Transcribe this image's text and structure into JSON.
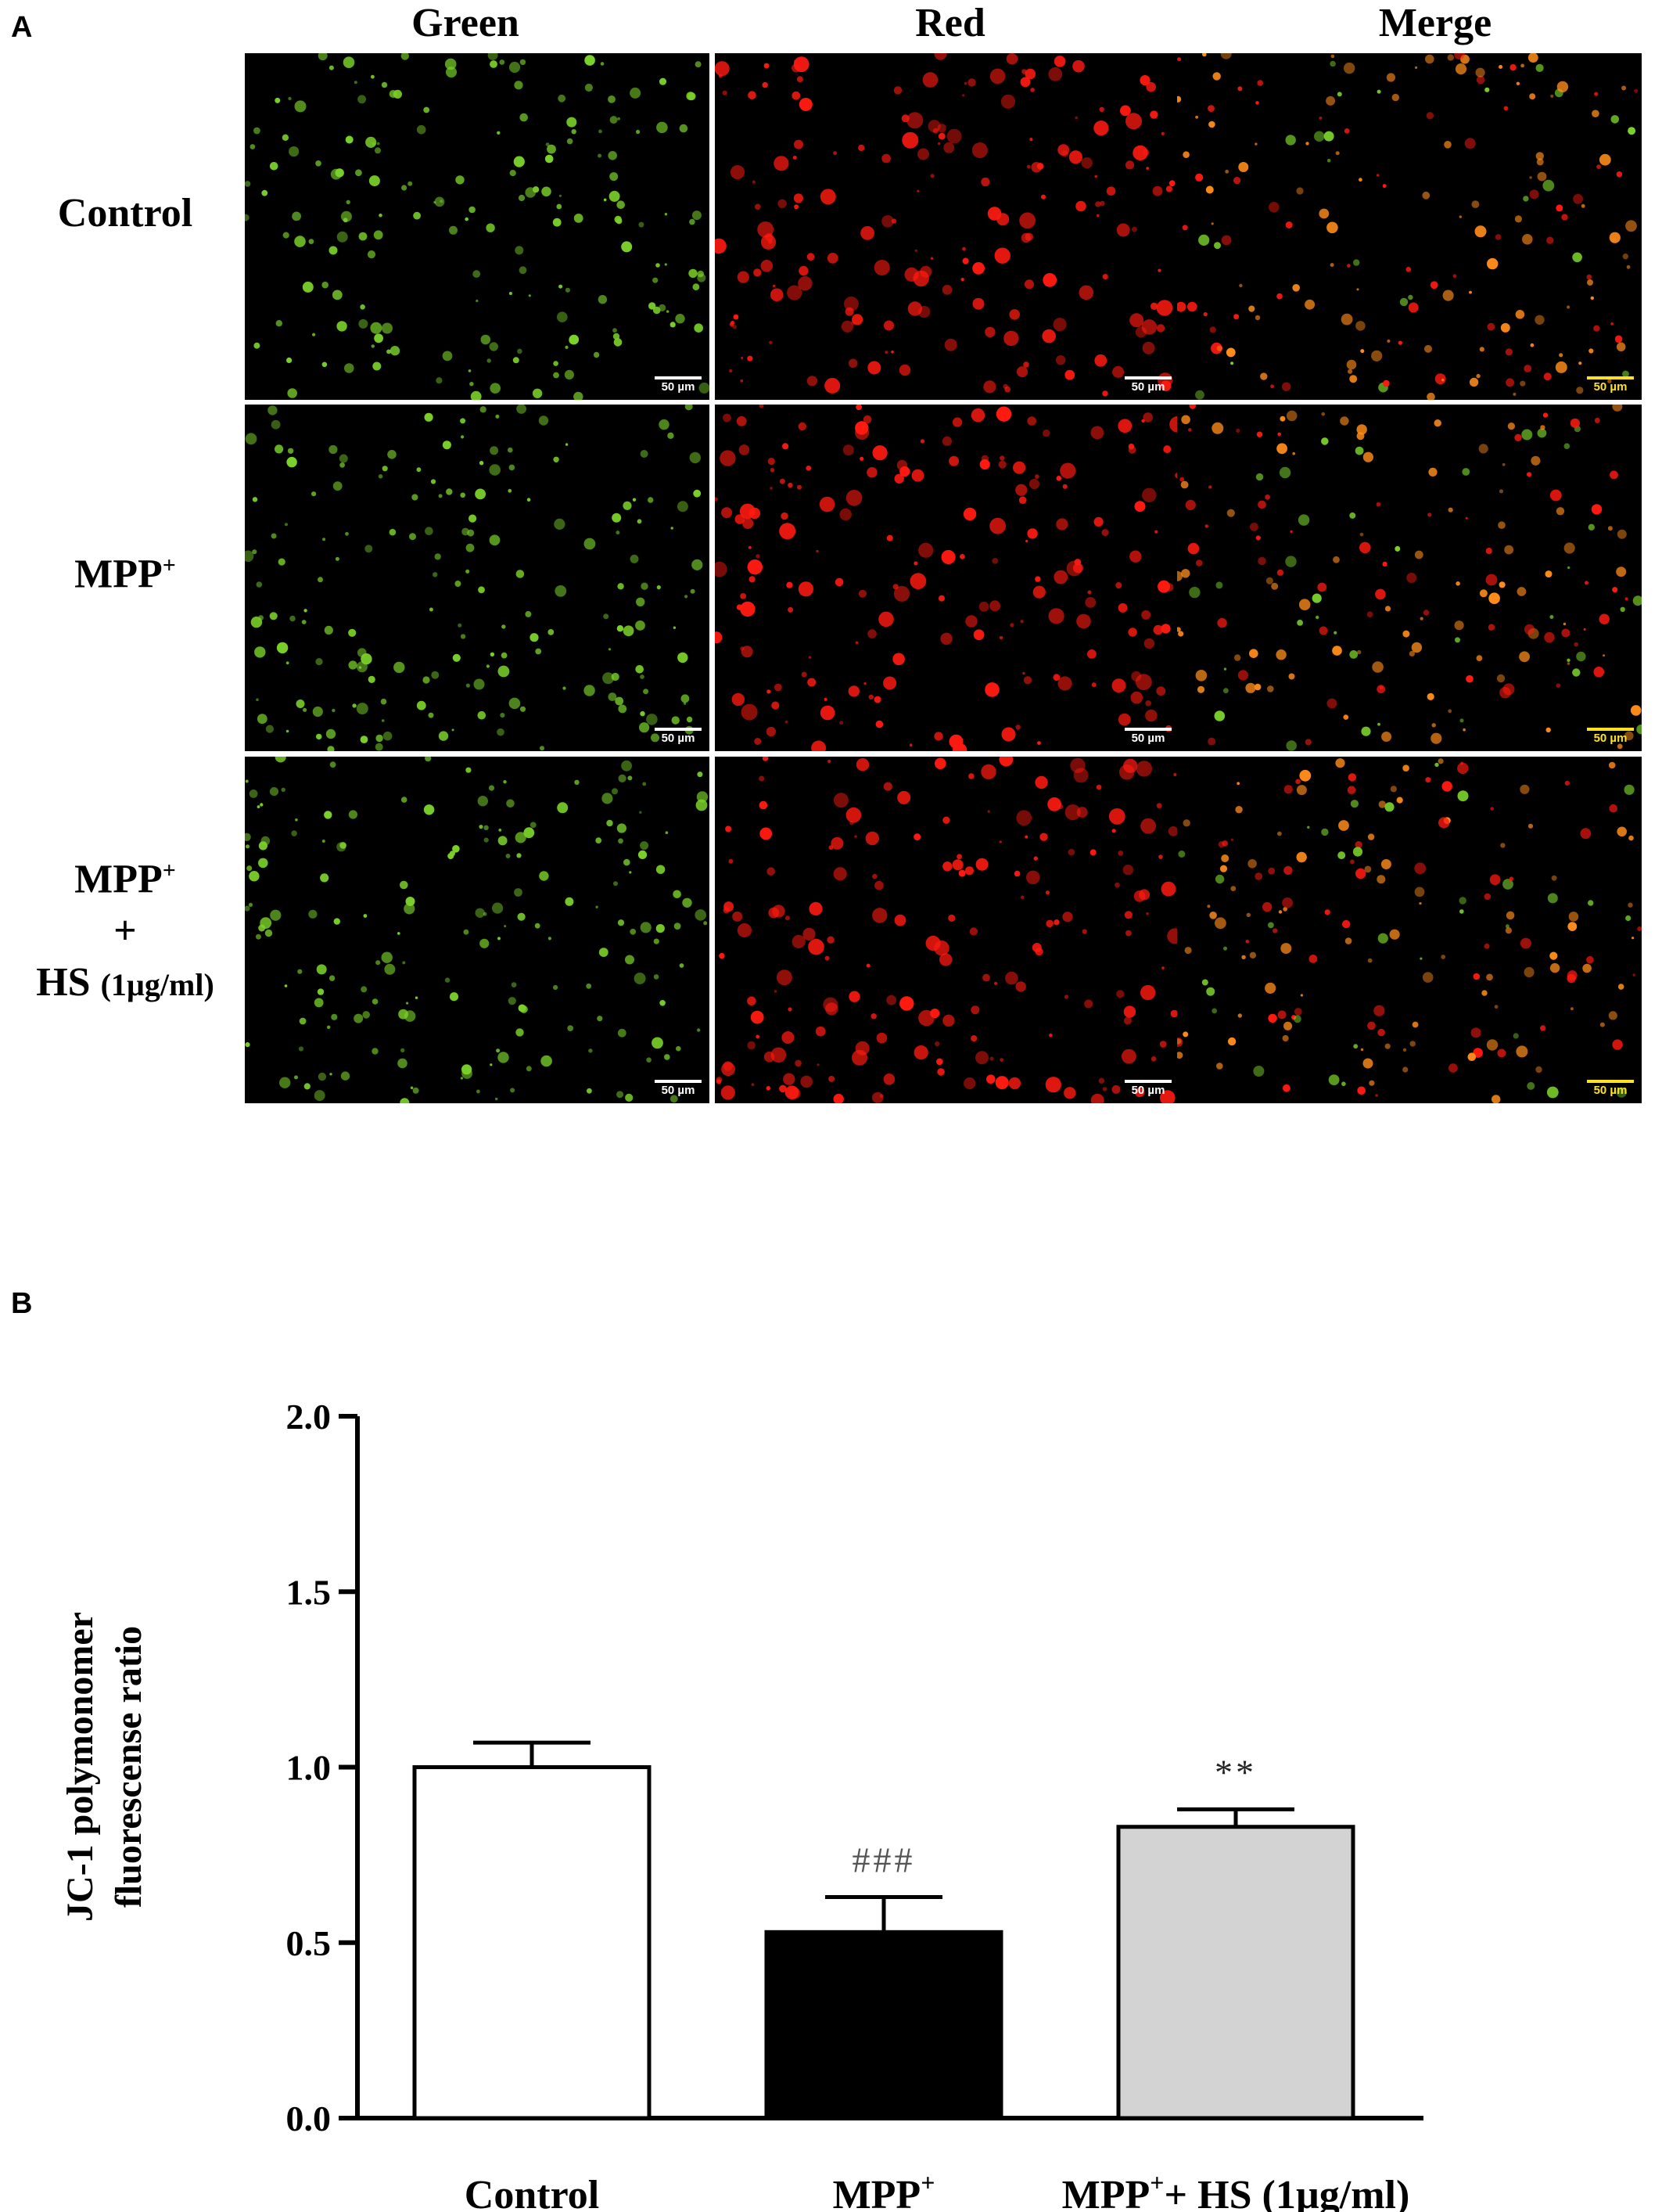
{
  "panel_a": {
    "letter": "A",
    "columns": [
      "Green",
      "Red",
      "Merge"
    ],
    "rows": [
      {
        "line1": "Control",
        "sup1": ""
      },
      {
        "line1": "MPP",
        "sup1": "+"
      },
      {
        "line1": "MPP",
        "sup1": "+",
        "line2": "+",
        "line3": "HS",
        "line3_small": "(1µg/ml)"
      }
    ],
    "scale_bar_label": "50 µm",
    "channel_colors": {
      "green": "#7ad12a",
      "red": "#ff1a10",
      "merge": "#ff8c1a"
    },
    "scale_bar_colors": [
      "#ffffff",
      "#ffffff",
      "#ffe21f"
    ]
  },
  "panel_b": {
    "letter": "B"
  },
  "chart_data": {
    "type": "bar",
    "categories": [
      "Control",
      "MPP+",
      "MPP+ + HS (1µg/ml)"
    ],
    "category_labels": [
      {
        "main": "Control",
        "sup": "",
        "suffix": ""
      },
      {
        "main": "MPP",
        "sup": "+",
        "suffix": ""
      },
      {
        "main": "MPP",
        "sup": "+",
        "suffix": "+ HS (1µg/ml)"
      }
    ],
    "values": [
      1.0,
      0.53,
      0.83
    ],
    "errors": [
      0.07,
      0.1,
      0.05
    ],
    "bar_colors": [
      "#ffffff",
      "#000000",
      "#d3d3d3"
    ],
    "annotations": [
      "",
      "###",
      "**"
    ],
    "ylabel_lines": [
      "JC-1 polymonomer",
      "fluorescense ratio"
    ],
    "ylim": [
      0,
      2.0
    ],
    "yticks": [
      "0.0",
      "0.5",
      "1.0",
      "1.5",
      "2.0"
    ],
    "grid": false
  }
}
